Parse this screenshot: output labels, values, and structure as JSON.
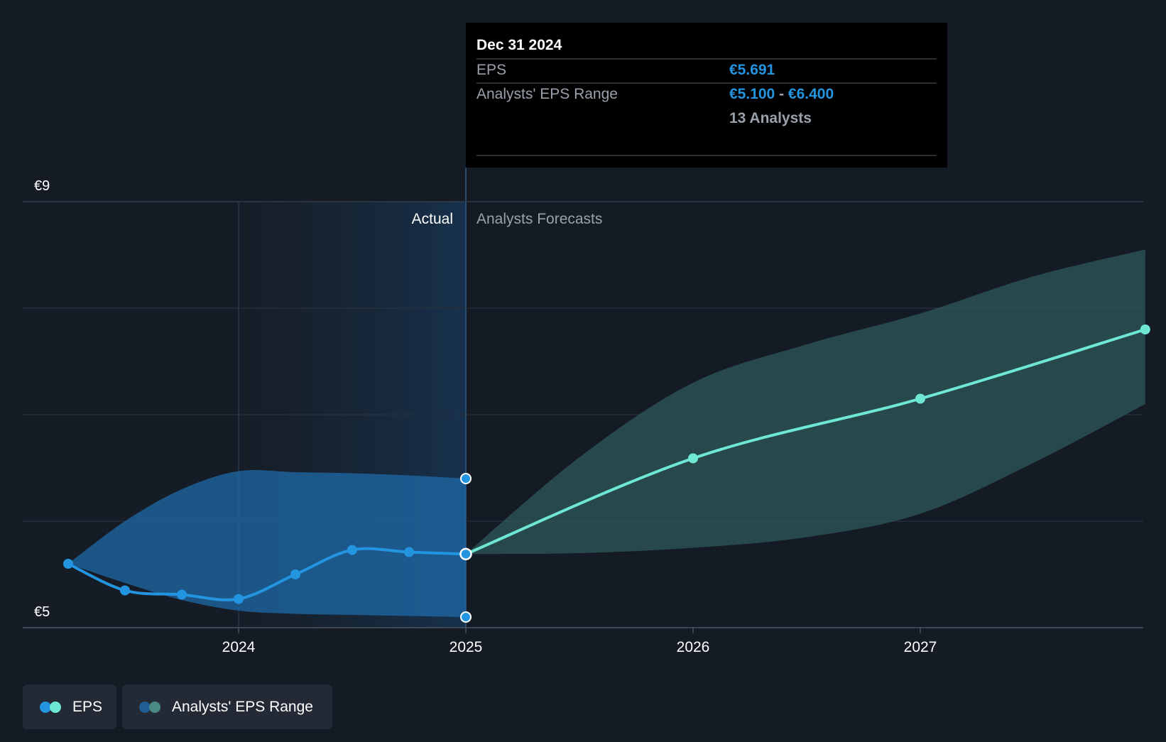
{
  "colors": {
    "background": "#151b24",
    "actual_line": "#2394df",
    "forecast_line": "#6ee8d4",
    "actual_band": "#1f6aa8",
    "forecast_band": "#2f5a5a",
    "tooltip_bg": "#000000",
    "accent_value": "#2394df"
  },
  "section_labels": {
    "actual": "Actual",
    "forecast": "Analysts Forecasts"
  },
  "tooltip": {
    "date": "Dec 31 2024",
    "rows": [
      {
        "label": "EPS",
        "value": "€5.691"
      },
      {
        "label": "Analysts' EPS Range",
        "low": "€5.100",
        "separator": " - ",
        "high": "€6.400"
      }
    ],
    "analysts": "13 Analysts"
  },
  "legend": {
    "items": [
      {
        "label": "EPS",
        "icon": "eps-legend-icon"
      },
      {
        "label": "Analysts' EPS Range",
        "icon": "range-legend-icon"
      }
    ]
  },
  "chart_data": {
    "type": "line",
    "title": "",
    "xlabel": "",
    "ylabel": "",
    "currency": "€",
    "ylim": [
      5,
      9
    ],
    "y_tick_labels": [
      "€9",
      "€5"
    ],
    "y_tick_values": [
      9,
      5
    ],
    "grid_values": [
      9,
      8,
      7,
      6,
      5
    ],
    "xlim": [
      2023.2,
      2027.99
    ],
    "x_ticks": [
      {
        "value": 2024.0,
        "label": "2024"
      },
      {
        "value": 2025.0,
        "label": "2025"
      },
      {
        "value": 2026.0,
        "label": "2026"
      },
      {
        "value": 2027.0,
        "label": "2027"
      }
    ],
    "actual_start": 2024.0,
    "forecast_start": 2025.0,
    "series": [
      {
        "name": "EPS",
        "kind": "actual",
        "x": [
          2023.25,
          2023.5,
          2023.75,
          2024.0,
          2024.25,
          2024.5,
          2024.75,
          2025.0
        ],
        "y": [
          5.6,
          5.35,
          5.31,
          5.27,
          5.5,
          5.73,
          5.71,
          5.691
        ]
      },
      {
        "name": "EPS",
        "kind": "forecast",
        "x": [
          2025.0,
          2026.0,
          2027.0,
          2027.99
        ],
        "y": [
          5.691,
          6.59,
          7.15,
          7.8
        ]
      }
    ],
    "ranges": [
      {
        "name": "Analysts' EPS Range",
        "kind": "actual",
        "x": [
          2023.25,
          2023.5,
          2023.75,
          2024.0,
          2024.25,
          2024.5,
          2024.75,
          2025.0
        ],
        "low": [
          5.6,
          5.42,
          5.26,
          5.16,
          5.13,
          5.12,
          5.11,
          5.1
        ],
        "high": [
          5.6,
          6.0,
          6.3,
          6.47,
          6.46,
          6.45,
          6.43,
          6.4
        ]
      },
      {
        "name": "Analysts' EPS Range",
        "kind": "forecast",
        "x": [
          2025.0,
          2025.5,
          2026.0,
          2026.5,
          2027.0,
          2027.5,
          2027.99
        ],
        "low": [
          5.691,
          5.7,
          5.75,
          5.85,
          6.07,
          6.55,
          7.1
        ],
        "high": [
          5.691,
          6.6,
          7.3,
          7.66,
          7.95,
          8.3,
          8.55
        ]
      }
    ],
    "markers": {
      "selected_x": 2025.0,
      "range_points": [
        6.4,
        5.1
      ]
    }
  }
}
